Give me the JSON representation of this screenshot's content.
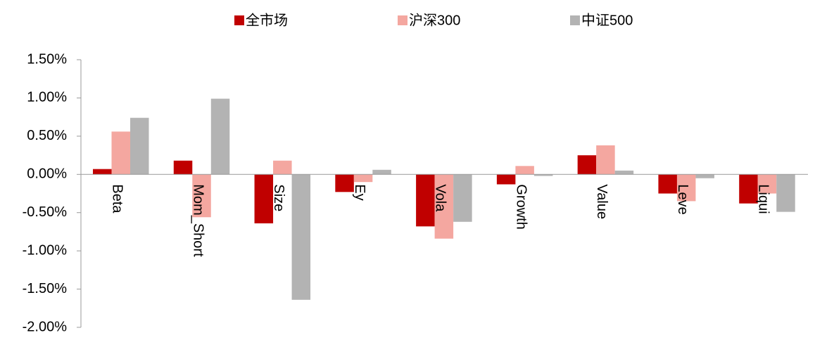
{
  "chart_data": {
    "type": "bar",
    "categories": [
      "Beta",
      "Mom_Short",
      "Size",
      "Ey",
      "Vola",
      "Growth",
      "Value",
      "Leve",
      "Liqui"
    ],
    "series": [
      {
        "name": "全市场",
        "color": "#c00000",
        "values": [
          0.07,
          0.18,
          -0.64,
          -0.23,
          -0.68,
          -0.13,
          0.25,
          -0.25,
          -0.38
        ]
      },
      {
        "name": "沪深300",
        "color": "#f4a7a0",
        "values": [
          0.56,
          -0.56,
          0.18,
          -0.1,
          -0.84,
          0.11,
          0.38,
          -0.35,
          -0.25
        ]
      },
      {
        "name": "中证500",
        "color": "#b3b3b3",
        "values": [
          0.74,
          0.99,
          -1.64,
          0.06,
          -0.62,
          -0.02,
          0.05,
          -0.05,
          -0.49
        ]
      }
    ],
    "ylim": [
      -2.0,
      1.5
    ],
    "yticks": [
      {
        "value": -2.0,
        "label": "-2.00%"
      },
      {
        "value": -1.5,
        "label": "-1.50%"
      },
      {
        "value": -1.0,
        "label": "-1.00%"
      },
      {
        "value": -0.5,
        "label": "-0.50%"
      },
      {
        "value": 0,
        "label": "0.00%"
      },
      {
        "value": 0.5,
        "label": "0.50%"
      },
      {
        "value": 1.0,
        "label": "1.00%"
      },
      {
        "value": 1.5,
        "label": "1.50%"
      }
    ],
    "grid": false,
    "legend": "top"
  }
}
